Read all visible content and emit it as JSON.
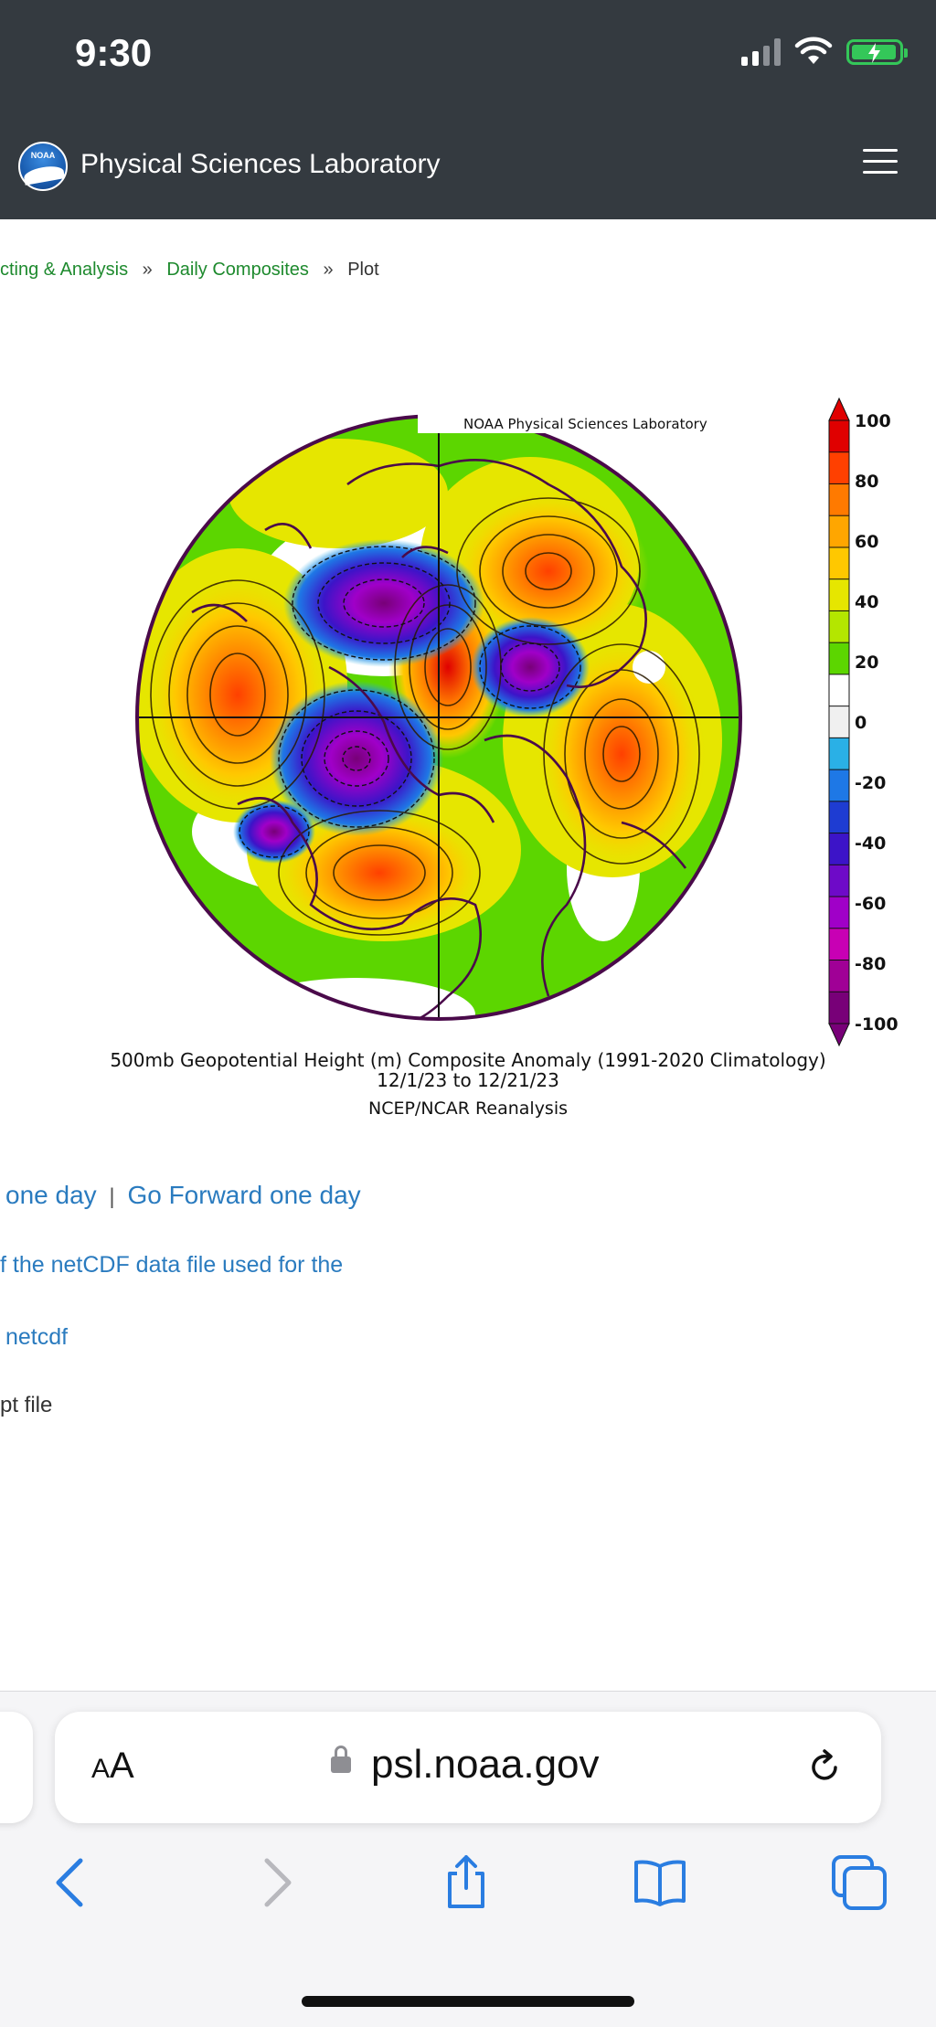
{
  "status_bar": {
    "time": "9:30"
  },
  "header": {
    "title": "Physical Sciences Laboratory",
    "logo_text": "NOAA"
  },
  "breadcrumb": {
    "item1": "cting & Analysis",
    "item2": "Daily Composites",
    "item3": "Plot",
    "sep": "»"
  },
  "plot": {
    "watermark": "NOAA Physical Sciences Laboratory",
    "title": "500mb Geopotential Height (m) Composite Anomaly (1991-2020 Climatology)",
    "dates": "12/1/23  to 12/21/23",
    "source": "NCEP/NCAR Reanalysis",
    "scale_labels": [
      "100",
      "80",
      "60",
      "40",
      "20",
      "0",
      "-20",
      "-40",
      "-60",
      "-80",
      "-100"
    ],
    "scale_colors": [
      "#e00000",
      "#ff4000",
      "#ff7a00",
      "#ffa600",
      "#ffc800",
      "#e6e600",
      "#b4e600",
      "#5cd600",
      "#ffffff",
      "#f0f0f0",
      "#2ab0e6",
      "#1e78e6",
      "#1e3cd2",
      "#3c14c8",
      "#6e0ac8",
      "#a000c8",
      "#c800b4",
      "#a00096",
      "#780078"
    ]
  },
  "links": {
    "back": "one day",
    "pipe": "|",
    "forward": "Go Forward one day",
    "netcdf_desc": "f the netCDF data file used for the",
    "netcdf": "netcdf",
    "script": "pt file"
  },
  "browser": {
    "aa_big": "A",
    "aa_small": "A",
    "url": "psl.noaa.gov"
  }
}
